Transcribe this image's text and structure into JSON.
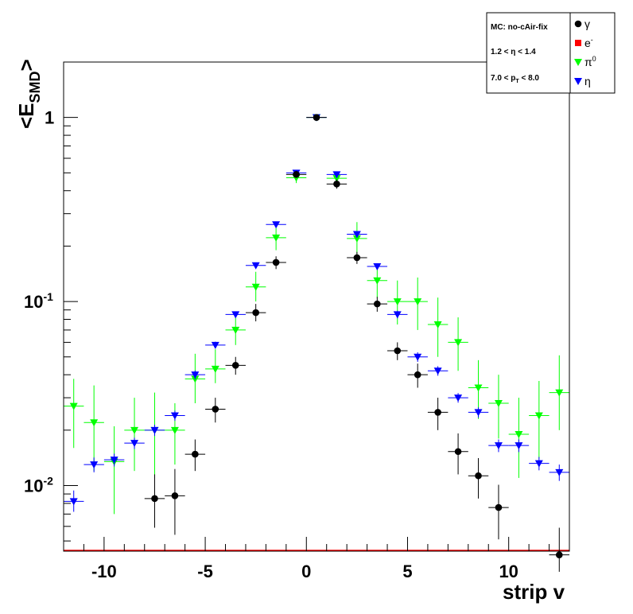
{
  "chart_data": {
    "type": "scatter",
    "xlabel": "strip v",
    "ylabel": "<E",
    "ylabel_sub": "SMD",
    "ylabel_end": ">",
    "xlim": [
      -12,
      13
    ],
    "ylim": [
      0.0044,
      2.0
    ],
    "yscale": "log",
    "xticks": [
      -10,
      -5,
      0,
      5,
      10
    ],
    "xtick_labels": [
      "-10",
      "-5",
      "0",
      "5",
      "10"
    ],
    "yticks": [
      {
        "value": 1,
        "label": "1",
        "exp": ""
      },
      {
        "value": 0.1,
        "label": "10",
        "exp": "-1"
      },
      {
        "value": 0.01,
        "label": "10",
        "exp": "-2"
      }
    ],
    "grid": false,
    "info_box": {
      "lines": [
        {
          "text": "MC: no-cAir-fix",
          "sub": "",
          "tail": ""
        },
        {
          "text": "1.2 < η < 1.4",
          "sub": "",
          "tail": ""
        },
        {
          "text": "7.0 < p",
          "sub": "T",
          "tail": " < 8.0"
        }
      ]
    },
    "legend_position": "top-right",
    "series": [
      {
        "name": "γ",
        "name_sup": "",
        "marker": "circle",
        "color": "#000000",
        "x": [
          -7.5,
          -6.5,
          -5.5,
          -4.5,
          -3.5,
          -2.5,
          -1.5,
          -0.5,
          0.5,
          1.5,
          2.5,
          3.5,
          4.5,
          5.5,
          6.5,
          7.5,
          8.5,
          9.5,
          12.5
        ],
        "y": [
          0.0085,
          0.0088,
          0.0148,
          0.026,
          0.045,
          0.087,
          0.163,
          0.49,
          1.0,
          0.435,
          0.173,
          0.097,
          0.054,
          0.04,
          0.025,
          0.0153,
          0.0113,
          0.0076,
          0.0042
        ],
        "ylow": [
          0.0059,
          0.0054,
          0.012,
          0.022,
          0.04,
          0.078,
          0.15,
          0.47,
          0.98,
          0.41,
          0.16,
          0.088,
          0.048,
          0.034,
          0.02,
          0.0115,
          0.0085,
          0.0051,
          0.0034
        ],
        "yhigh": [
          0.0115,
          0.0123,
          0.0178,
          0.03,
          0.05,
          0.097,
          0.176,
          0.51,
          1.02,
          0.46,
          0.186,
          0.106,
          0.06,
          0.046,
          0.03,
          0.0192,
          0.0141,
          0.0101,
          0.0059
        ]
      },
      {
        "name": "e",
        "name_sup": "-",
        "marker": "square",
        "color": "#ff0000",
        "x": [],
        "y": [],
        "ylow": [],
        "yhigh": []
      },
      {
        "name": "π",
        "name_sup": "0",
        "marker": "triangle-down",
        "color": "#00ff00",
        "x": [
          -11.5,
          -10.5,
          -9.5,
          -8.5,
          -7.5,
          -6.5,
          -5.5,
          -4.5,
          -3.5,
          -2.5,
          -1.5,
          -0.5,
          0.5,
          1.5,
          2.5,
          3.5,
          4.5,
          5.5,
          6.5,
          7.5,
          8.5,
          9.5,
          10.5,
          11.5,
          12.5
        ],
        "y": [
          0.027,
          0.022,
          0.0135,
          0.02,
          0.02,
          0.02,
          0.038,
          0.043,
          0.07,
          0.12,
          0.222,
          0.47,
          1.0,
          0.467,
          0.22,
          0.13,
          0.1,
          0.1,
          0.075,
          0.06,
          0.034,
          0.028,
          0.019,
          0.024,
          0.032
        ],
        "ylow": [
          0.016,
          0.012,
          0.007,
          0.012,
          0.011,
          0.013,
          0.028,
          0.036,
          0.058,
          0.1,
          0.19,
          0.44,
          0.97,
          0.43,
          0.175,
          0.105,
          0.075,
          0.07,
          0.05,
          0.042,
          0.023,
          0.018,
          0.011,
          0.014,
          0.02
        ],
        "yhigh": [
          0.038,
          0.035,
          0.021,
          0.03,
          0.032,
          0.028,
          0.052,
          0.055,
          0.085,
          0.145,
          0.255,
          0.5,
          1.03,
          0.5,
          0.27,
          0.155,
          0.13,
          0.135,
          0.105,
          0.082,
          0.048,
          0.04,
          0.03,
          0.037,
          0.051
        ]
      },
      {
        "name": "η",
        "name_sup": "",
        "marker": "triangle-down",
        "color": "#0000ff",
        "x": [
          -11.5,
          -10.5,
          -9.5,
          -8.5,
          -7.5,
          -6.5,
          -5.5,
          -4.5,
          -3.5,
          -2.5,
          -1.5,
          -0.5,
          0.5,
          1.5,
          2.5,
          3.5,
          4.5,
          5.5,
          6.5,
          7.5,
          8.5,
          9.5,
          10.5,
          11.5,
          12.5
        ],
        "y": [
          0.0082,
          0.013,
          0.0138,
          0.017,
          0.02,
          0.024,
          0.04,
          0.058,
          0.085,
          0.157,
          0.262,
          0.5,
          1.0,
          0.49,
          0.232,
          0.155,
          0.085,
          0.05,
          0.042,
          0.03,
          0.025,
          0.0165,
          0.0165,
          0.0132,
          0.0118
        ],
        "ylow": [
          0.0072,
          0.0118,
          0.0127,
          0.0158,
          0.0186,
          0.0225,
          0.0378,
          0.0555,
          0.082,
          0.152,
          0.256,
          0.49,
          0.99,
          0.48,
          0.225,
          0.15,
          0.081,
          0.047,
          0.0395,
          0.0282,
          0.0234,
          0.0152,
          0.0152,
          0.0121,
          0.0106
        ],
        "yhigh": [
          0.0094,
          0.0142,
          0.0149,
          0.0182,
          0.0214,
          0.0255,
          0.0422,
          0.0605,
          0.088,
          0.162,
          0.268,
          0.51,
          1.01,
          0.5,
          0.239,
          0.16,
          0.089,
          0.053,
          0.0445,
          0.0318,
          0.0266,
          0.0178,
          0.0178,
          0.0143,
          0.013
        ]
      }
    ]
  }
}
